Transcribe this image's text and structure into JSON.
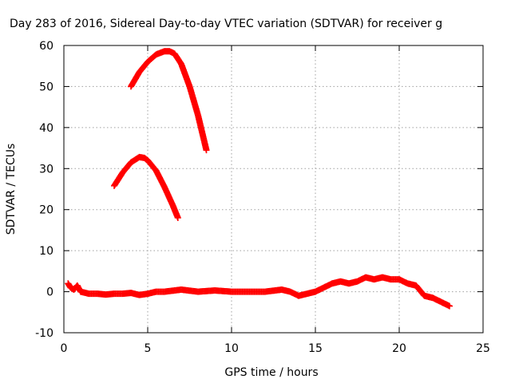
{
  "chart_data": {
    "type": "scatter",
    "title": "Day 283 of 2016, Sidereal Day-to-day VTEC variation (SDTVAR) for receiver g",
    "xlabel": "GPS time / hours",
    "ylabel": "SDTVAR / TECUs",
    "xlim": [
      0,
      25
    ],
    "ylim": [
      -10,
      60
    ],
    "x_ticks": [
      "0",
      "5",
      "10",
      "15",
      "20",
      "25"
    ],
    "y_ticks": [
      "-10",
      "0",
      "10",
      "20",
      "30",
      "40",
      "50",
      "60"
    ],
    "x_tick_values": [
      0,
      5,
      10,
      15,
      20,
      25
    ],
    "y_tick_values": [
      -10,
      0,
      10,
      20,
      30,
      40,
      50,
      60
    ],
    "grid": true,
    "marker": "+",
    "color": "#ff0000",
    "series": [
      {
        "x": [
          4.0,
          4.5,
          5.0,
          5.5,
          6.0,
          6.3,
          6.6,
          7.0,
          7.5,
          8.0,
          8.5
        ],
        "y": [
          50.0,
          53.5,
          56.0,
          57.8,
          58.6,
          58.6,
          58.0,
          55.5,
          50.0,
          43.0,
          34.5
        ]
      },
      {
        "x": [
          3.0,
          3.5,
          4.0,
          4.5,
          4.8,
          5.0,
          5.5,
          6.0,
          6.5,
          6.8
        ],
        "y": [
          25.8,
          29.0,
          31.5,
          32.8,
          32.6,
          32.0,
          29.5,
          25.5,
          21.0,
          18.0
        ]
      },
      {
        "x": [
          0.25,
          0.4,
          0.6,
          0.8,
          1.0,
          1.5,
          2.0,
          2.5,
          3.0,
          3.5,
          4.0,
          4.5,
          5.0,
          5.5,
          6.0,
          7.0,
          8.0,
          9.0,
          10.0,
          11.0,
          12.0,
          13.0,
          13.5,
          14.0,
          14.5,
          15.0,
          15.5,
          16.0,
          16.5,
          17.0,
          17.5,
          18.0,
          18.5,
          19.0,
          19.5,
          20.0,
          20.5,
          21.0,
          21.5,
          22.0,
          22.5,
          23.0
        ],
        "y": [
          2.0,
          1.0,
          0.5,
          1.5,
          0.0,
          -0.5,
          -0.5,
          -0.7,
          -0.5,
          -0.5,
          -0.3,
          -0.8,
          -0.5,
          0.0,
          0.0,
          0.5,
          0.0,
          0.3,
          0.0,
          0.0,
          0.0,
          0.5,
          0.0,
          -1.0,
          -0.5,
          0.0,
          1.0,
          2.0,
          2.5,
          2.0,
          2.5,
          3.5,
          3.0,
          3.5,
          3.0,
          3.0,
          2.0,
          1.5,
          -1.0,
          -1.5,
          -2.5,
          -3.5
        ]
      }
    ]
  }
}
